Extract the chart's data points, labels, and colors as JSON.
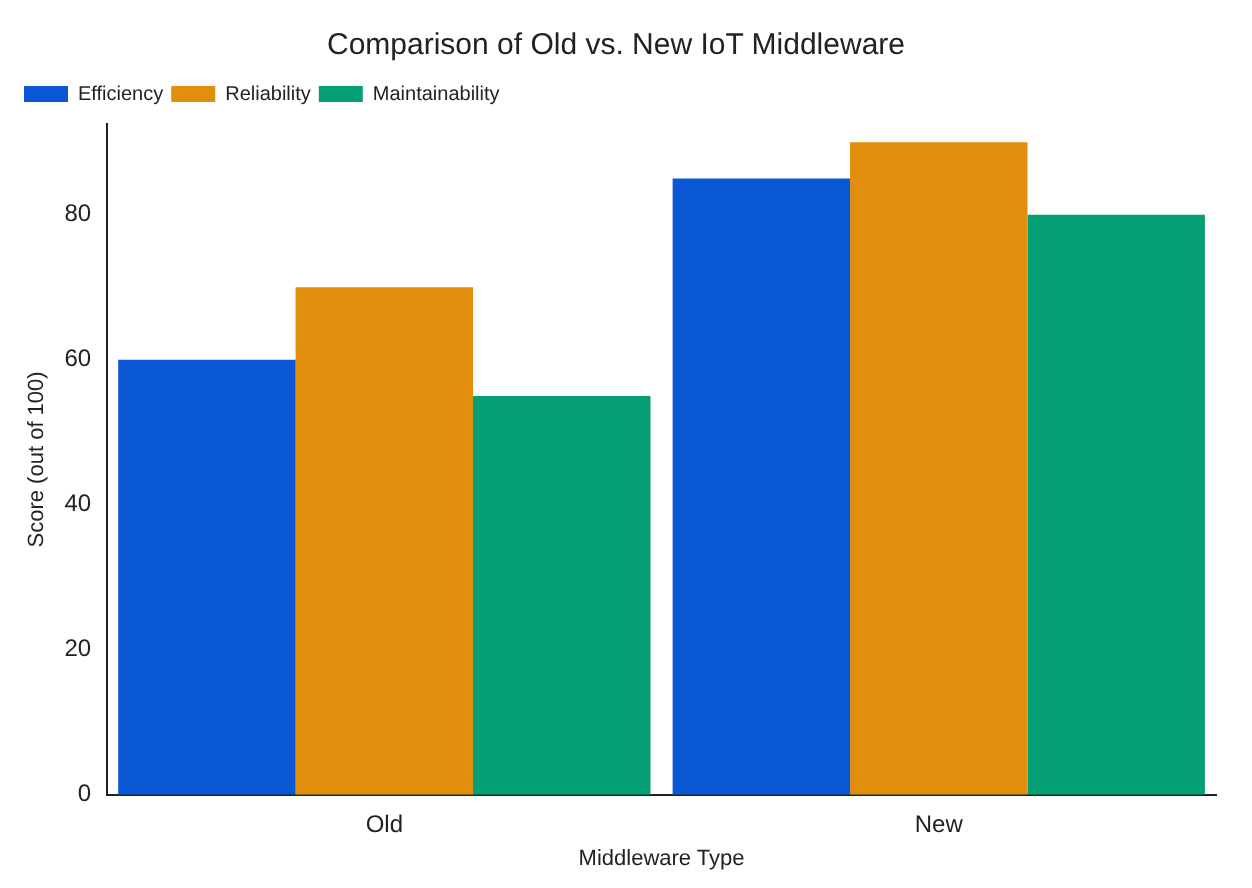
{
  "chart_data": {
    "type": "bar",
    "title": "Comparison of Old vs. New IoT Middleware",
    "xlabel": "Middleware Type",
    "ylabel": "Score (out of 100)",
    "categories": [
      "Old",
      "New"
    ],
    "series": [
      {
        "name": "Efficiency",
        "color": "#0a57d4",
        "values": [
          60,
          85
        ]
      },
      {
        "name": "Reliability",
        "color": "#e08e0b",
        "values": [
          70,
          90
        ]
      },
      {
        "name": "Maintainability",
        "color": "#049f74",
        "values": [
          55,
          80
        ]
      }
    ],
    "ylim": [
      0,
      92.5
    ],
    "yticks": [
      0,
      20,
      40,
      60,
      80
    ],
    "grid": false,
    "legend": "top left"
  }
}
